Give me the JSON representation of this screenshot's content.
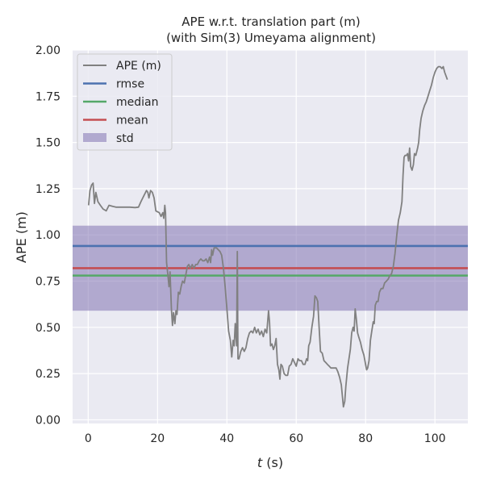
{
  "chart_data": {
    "type": "line",
    "title": "APE w.r.t. translation part (m)",
    "subtitle": "(with Sim(3) Umeyama alignment)",
    "xlabel_italic": "t",
    "xlabel_rest": " (s)",
    "ylabel": "APE (m)",
    "xlim": [
      -4.5,
      109.5
    ],
    "ylim": [
      -0.02,
      2.0
    ],
    "xticks": [
      0,
      20,
      40,
      60,
      80,
      100
    ],
    "xtick_labels": [
      "0",
      "20",
      "40",
      "60",
      "80",
      "100"
    ],
    "yticks": [
      0.0,
      0.25,
      0.5,
      0.75,
      1.0,
      1.25,
      1.5,
      1.75,
      2.0
    ],
    "ytick_labels": [
      "0.00",
      "0.25",
      "0.50",
      "0.75",
      "1.00",
      "1.25",
      "1.50",
      "1.75",
      "2.00"
    ],
    "legend": {
      "position": "top-left",
      "entries": [
        {
          "label": "APE (m)",
          "kind": "line",
          "color": "#808080"
        },
        {
          "label": "rmse",
          "kind": "line",
          "color": "#4c72b0"
        },
        {
          "label": "median",
          "kind": "line",
          "color": "#55a868"
        },
        {
          "label": "mean",
          "kind": "line",
          "color": "#c44e52"
        },
        {
          "label": "std",
          "kind": "patch",
          "color": "#8172b2"
        }
      ]
    },
    "stats": {
      "rmse": 0.94,
      "median": 0.78,
      "mean": 0.82,
      "std_band": [
        0.59,
        1.05
      ]
    },
    "series": [
      {
        "name": "APE (m)",
        "color": "#808080",
        "points": [
          [
            0.1,
            1.16
          ],
          [
            0.5,
            1.24
          ],
          [
            1.0,
            1.27
          ],
          [
            1.4,
            1.28
          ],
          [
            1.8,
            1.17
          ],
          [
            2.2,
            1.23
          ],
          [
            2.8,
            1.18
          ],
          [
            3.5,
            1.16
          ],
          [
            4.3,
            1.14
          ],
          [
            5.2,
            1.13
          ],
          [
            6.0,
            1.16
          ],
          [
            7.0,
            1.155
          ],
          [
            8.0,
            1.15
          ],
          [
            10,
            1.15
          ],
          [
            12,
            1.15
          ],
          [
            13.5,
            1.148
          ],
          [
            14.5,
            1.15
          ],
          [
            15.2,
            1.18
          ],
          [
            16.0,
            1.21
          ],
          [
            16.8,
            1.24
          ],
          [
            17.2,
            1.23
          ],
          [
            17.5,
            1.2
          ],
          [
            18.0,
            1.24
          ],
          [
            18.5,
            1.23
          ],
          [
            19.0,
            1.2
          ],
          [
            19.5,
            1.13
          ],
          [
            20.5,
            1.12
          ],
          [
            21.0,
            1.1
          ],
          [
            21.5,
            1.12
          ],
          [
            21.8,
            1.09
          ],
          [
            22.1,
            1.16
          ],
          [
            22.3,
            1.12
          ],
          [
            22.6,
            0.85
          ],
          [
            23.0,
            0.78
          ],
          [
            23.3,
            0.72
          ],
          [
            23.6,
            0.8
          ],
          [
            24.0,
            0.6
          ],
          [
            24.3,
            0.51
          ],
          [
            24.6,
            0.58
          ],
          [
            25.0,
            0.52
          ],
          [
            25.3,
            0.59
          ],
          [
            25.6,
            0.57
          ],
          [
            26.0,
            0.69
          ],
          [
            26.4,
            0.68
          ],
          [
            26.8,
            0.72
          ],
          [
            27.2,
            0.75
          ],
          [
            27.7,
            0.74
          ],
          [
            28.2,
            0.79
          ],
          [
            28.6,
            0.83
          ],
          [
            29.0,
            0.84
          ],
          [
            29.5,
            0.82
          ],
          [
            30.0,
            0.84
          ],
          [
            30.5,
            0.82
          ],
          [
            31.0,
            0.84
          ],
          [
            31.5,
            0.84
          ],
          [
            32.0,
            0.86
          ],
          [
            32.5,
            0.87
          ],
          [
            33.0,
            0.86
          ],
          [
            33.5,
            0.86
          ],
          [
            34.0,
            0.87
          ],
          [
            34.5,
            0.85
          ],
          [
            35.0,
            0.88
          ],
          [
            35.3,
            0.85
          ],
          [
            35.6,
            0.92
          ],
          [
            35.9,
            0.89
          ],
          [
            36.3,
            0.93
          ],
          [
            37.0,
            0.93
          ],
          [
            37.5,
            0.92
          ],
          [
            38.0,
            0.91
          ],
          [
            38.5,
            0.89
          ],
          [
            39.0,
            0.82
          ],
          [
            39.5,
            0.72
          ],
          [
            40.0,
            0.6
          ],
          [
            40.5,
            0.48
          ],
          [
            41.0,
            0.43
          ],
          [
            41.4,
            0.34
          ],
          [
            41.8,
            0.43
          ],
          [
            42.1,
            0.4
          ],
          [
            42.4,
            0.52
          ],
          [
            42.8,
            0.4
          ],
          [
            43.0,
            0.91
          ],
          [
            43.2,
            0.33
          ],
          [
            43.5,
            0.33
          ],
          [
            44.0,
            0.37
          ],
          [
            44.5,
            0.39
          ],
          [
            45.0,
            0.37
          ],
          [
            45.5,
            0.39
          ],
          [
            46.0,
            0.44
          ],
          [
            46.5,
            0.47
          ],
          [
            47.0,
            0.48
          ],
          [
            47.5,
            0.47
          ],
          [
            48.0,
            0.5
          ],
          [
            48.5,
            0.47
          ],
          [
            49.0,
            0.49
          ],
          [
            49.5,
            0.46
          ],
          [
            50.0,
            0.48
          ],
          [
            50.5,
            0.45
          ],
          [
            51.0,
            0.49
          ],
          [
            51.5,
            0.47
          ],
          [
            52.0,
            0.59
          ],
          [
            52.3,
            0.53
          ],
          [
            52.6,
            0.4
          ],
          [
            53.0,
            0.41
          ],
          [
            53.4,
            0.38
          ],
          [
            53.8,
            0.4
          ],
          [
            54.2,
            0.44
          ],
          [
            54.6,
            0.3
          ],
          [
            55.0,
            0.27
          ],
          [
            55.3,
            0.22
          ],
          [
            55.6,
            0.3
          ],
          [
            56.0,
            0.29
          ],
          [
            56.5,
            0.25
          ],
          [
            57.0,
            0.24
          ],
          [
            57.5,
            0.24
          ],
          [
            58.0,
            0.29
          ],
          [
            58.5,
            0.3
          ],
          [
            59.0,
            0.33
          ],
          [
            59.5,
            0.31
          ],
          [
            60.0,
            0.29
          ],
          [
            60.5,
            0.33
          ],
          [
            61.0,
            0.32
          ],
          [
            61.5,
            0.32
          ],
          [
            62.0,
            0.3
          ],
          [
            62.5,
            0.3
          ],
          [
            63.0,
            0.33
          ],
          [
            63.3,
            0.32
          ],
          [
            63.6,
            0.4
          ],
          [
            64.0,
            0.42
          ],
          [
            64.5,
            0.5
          ],
          [
            65.0,
            0.56
          ],
          [
            65.4,
            0.67
          ],
          [
            65.8,
            0.66
          ],
          [
            66.2,
            0.64
          ],
          [
            66.6,
            0.5
          ],
          [
            67.0,
            0.37
          ],
          [
            67.5,
            0.36
          ],
          [
            68.0,
            0.32
          ],
          [
            68.5,
            0.31
          ],
          [
            69.0,
            0.3
          ],
          [
            69.5,
            0.29
          ],
          [
            70.0,
            0.28
          ],
          [
            71.0,
            0.28
          ],
          [
            71.5,
            0.28
          ],
          [
            72.0,
            0.26
          ],
          [
            72.5,
            0.23
          ],
          [
            73.0,
            0.19
          ],
          [
            73.3,
            0.13
          ],
          [
            73.6,
            0.07
          ],
          [
            74.0,
            0.1
          ],
          [
            74.3,
            0.18
          ],
          [
            74.8,
            0.28
          ],
          [
            75.2,
            0.33
          ],
          [
            75.6,
            0.38
          ],
          [
            76.0,
            0.47
          ],
          [
            76.4,
            0.5
          ],
          [
            76.7,
            0.48
          ],
          [
            77.0,
            0.6
          ],
          [
            77.3,
            0.55
          ],
          [
            77.7,
            0.47
          ],
          [
            78.0,
            0.45
          ],
          [
            78.5,
            0.42
          ],
          [
            79.0,
            0.38
          ],
          [
            79.5,
            0.35
          ],
          [
            80.0,
            0.3
          ],
          [
            80.3,
            0.27
          ],
          [
            80.6,
            0.28
          ],
          [
            81.0,
            0.32
          ],
          [
            81.4,
            0.43
          ],
          [
            81.8,
            0.48
          ],
          [
            82.2,
            0.53
          ],
          [
            82.5,
            0.52
          ],
          [
            82.8,
            0.62
          ],
          [
            83.2,
            0.64
          ],
          [
            83.6,
            0.64
          ],
          [
            84.0,
            0.69
          ],
          [
            84.5,
            0.71
          ],
          [
            85.0,
            0.71
          ],
          [
            85.5,
            0.74
          ],
          [
            86.0,
            0.75
          ],
          [
            86.5,
            0.76
          ],
          [
            87.0,
            0.78
          ],
          [
            87.5,
            0.79
          ],
          [
            88.0,
            0.83
          ],
          [
            88.5,
            0.9
          ],
          [
            89.0,
            1.0
          ],
          [
            89.5,
            1.08
          ],
          [
            90.0,
            1.12
          ],
          [
            90.5,
            1.18
          ],
          [
            90.8,
            1.32
          ],
          [
            91.1,
            1.42
          ],
          [
            91.4,
            1.43
          ],
          [
            91.8,
            1.43
          ],
          [
            92.1,
            1.44
          ],
          [
            92.4,
            1.4
          ],
          [
            92.7,
            1.47
          ],
          [
            93.0,
            1.37
          ],
          [
            93.4,
            1.35
          ],
          [
            93.8,
            1.38
          ],
          [
            94.1,
            1.44
          ],
          [
            94.5,
            1.43
          ],
          [
            95.0,
            1.47
          ],
          [
            95.3,
            1.5
          ],
          [
            95.6,
            1.57
          ],
          [
            96.0,
            1.63
          ],
          [
            96.5,
            1.67
          ],
          [
            97.0,
            1.7
          ],
          [
            97.5,
            1.72
          ],
          [
            98.0,
            1.75
          ],
          [
            98.5,
            1.78
          ],
          [
            99.0,
            1.81
          ],
          [
            99.5,
            1.85
          ],
          [
            100.0,
            1.88
          ],
          [
            100.5,
            1.9
          ],
          [
            101.0,
            1.91
          ],
          [
            101.5,
            1.91
          ],
          [
            102.0,
            1.9
          ],
          [
            102.4,
            1.91
          ],
          [
            102.8,
            1.88
          ],
          [
            103.2,
            1.86
          ],
          [
            103.6,
            1.84
          ]
        ]
      }
    ]
  }
}
